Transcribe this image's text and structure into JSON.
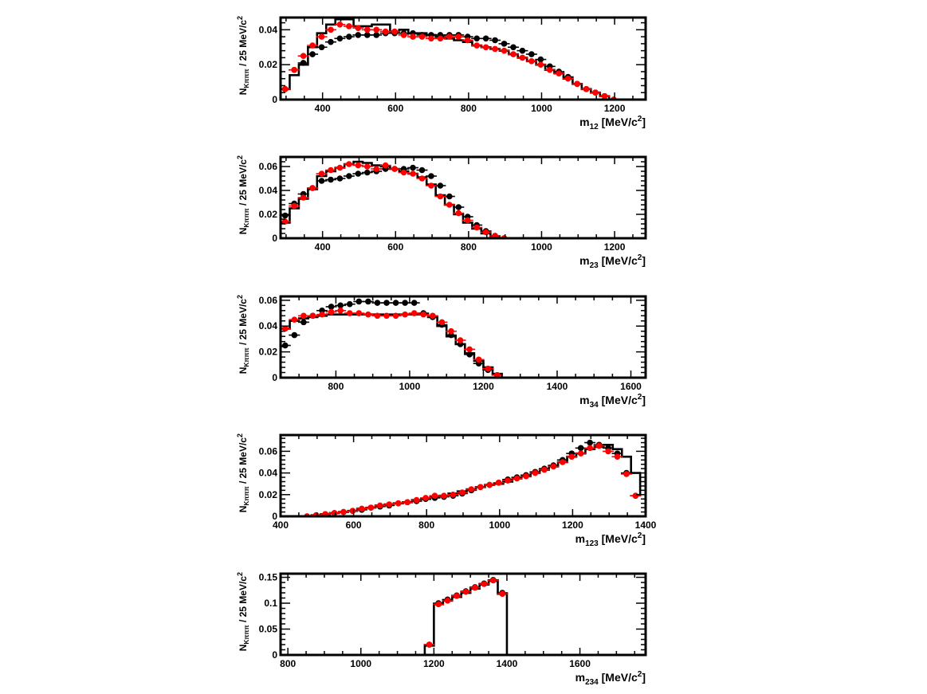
{
  "chart_data": [
    {
      "type": "scatter",
      "xlabel_main": "m",
      "xlabel_sub": "12",
      "xlabel_unit": " [MeV/c",
      "xlabel_sup": "2",
      "xlabel_end": "]",
      "ylabel_n": "N",
      "ylabel_sub": "Kπππ",
      "ylabel_rest": " / 25 MeV/c",
      "ylabel_sup": "2",
      "xlim": [
        285,
        1285
      ],
      "ylim": [
        0,
        0.047
      ],
      "xticks": [
        400,
        600,
        800,
        1000,
        1200
      ],
      "xtick_labels": [
        "400",
        "600",
        "800",
        "1000",
        "1200"
      ],
      "yticks": [
        0,
        0.02,
        0.04
      ],
      "ytick_labels": [
        "0",
        "0.02",
        "0.04"
      ],
      "hist_edges": [
        285,
        310,
        335,
        360,
        385,
        410,
        435,
        460,
        485,
        510,
        535,
        560,
        585,
        610,
        635,
        660,
        685,
        710,
        735,
        760,
        785,
        810,
        835,
        860,
        885,
        910,
        935,
        960,
        985,
        1010,
        1035,
        1060,
        1085,
        1110,
        1135,
        1160,
        1185,
        1210
      ],
      "hist_values": [
        0.006,
        0.014,
        0.02,
        0.03,
        0.038,
        0.043,
        0.046,
        0.046,
        0.042,
        0.042,
        0.043,
        0.043,
        0.039,
        0.04,
        0.038,
        0.038,
        0.037,
        0.036,
        0.035,
        0.034,
        0.033,
        0.031,
        0.03,
        0.029,
        0.028,
        0.026,
        0.024,
        0.022,
        0.02,
        0.017,
        0.015,
        0.012,
        0.009,
        0.006,
        0.004,
        0.002,
        0.0
      ],
      "series": [
        {
          "name": "black",
          "color": "#000000",
          "x": [
            297.5,
            322.5,
            347.5,
            372.5,
            397.5,
            422.5,
            447.5,
            472.5,
            497.5,
            522.5,
            547.5,
            572.5,
            597.5,
            622.5,
            647.5,
            672.5,
            697.5,
            722.5,
            747.5,
            772.5,
            797.5,
            822.5,
            847.5,
            872.5,
            897.5,
            922.5,
            947.5,
            972.5,
            997.5,
            1022.5,
            1047.5,
            1072.5,
            1097.5,
            1122.5,
            1147.5,
            1172.5,
            1197.5
          ],
          "y": [
            0.006,
            0.017,
            0.021,
            0.026,
            0.03,
            0.033,
            0.035,
            0.036,
            0.037,
            0.037,
            0.037,
            0.038,
            0.038,
            0.038,
            0.038,
            0.037,
            0.037,
            0.037,
            0.037,
            0.037,
            0.036,
            0.035,
            0.035,
            0.034,
            0.032,
            0.03,
            0.028,
            0.026,
            0.023,
            0.019,
            0.016,
            0.013,
            0.009,
            0.006,
            0.004,
            0.002,
            0.0
          ]
        },
        {
          "name": "red",
          "color": "#ff0000",
          "x": [
            297.5,
            322.5,
            347.5,
            372.5,
            397.5,
            422.5,
            447.5,
            472.5,
            497.5,
            522.5,
            547.5,
            572.5,
            597.5,
            622.5,
            647.5,
            672.5,
            697.5,
            722.5,
            747.5,
            772.5,
            797.5,
            822.5,
            847.5,
            872.5,
            897.5,
            922.5,
            947.5,
            972.5,
            997.5,
            1022.5,
            1047.5,
            1072.5,
            1097.5,
            1122.5,
            1147.5,
            1172.5,
            1197.5
          ],
          "y": [
            0.006,
            0.017,
            0.025,
            0.031,
            0.036,
            0.04,
            0.043,
            0.042,
            0.041,
            0.04,
            0.04,
            0.039,
            0.039,
            0.037,
            0.036,
            0.036,
            0.035,
            0.035,
            0.036,
            0.036,
            0.034,
            0.031,
            0.03,
            0.029,
            0.028,
            0.026,
            0.024,
            0.022,
            0.02,
            0.017,
            0.015,
            0.012,
            0.009,
            0.006,
            0.004,
            0.002,
            0.0
          ]
        }
      ]
    },
    {
      "type": "scatter",
      "xlabel_main": "m",
      "xlabel_sub": "23",
      "xlabel_unit": " [MeV/c",
      "xlabel_sup": "2",
      "xlabel_end": "]",
      "ylabel_n": "N",
      "ylabel_sub": "Kπππ",
      "ylabel_rest": " / 25 MeV/c",
      "ylabel_sup": "2",
      "xlim": [
        285,
        1285
      ],
      "ylim": [
        0,
        0.068
      ],
      "xticks": [
        400,
        600,
        800,
        1000,
        1200
      ],
      "xtick_labels": [
        "400",
        "600",
        "800",
        "1000",
        "1200"
      ],
      "yticks": [
        0,
        0.02,
        0.04,
        0.06
      ],
      "ytick_labels": [
        "0",
        "0.02",
        "0.04",
        "0.06"
      ],
      "hist_edges": [
        285,
        310,
        335,
        360,
        385,
        410,
        435,
        460,
        485,
        510,
        535,
        560,
        585,
        610,
        635,
        660,
        685,
        710,
        735,
        760,
        785,
        810,
        835,
        860,
        885,
        910
      ],
      "hist_values": [
        0.013,
        0.025,
        0.033,
        0.041,
        0.052,
        0.056,
        0.059,
        0.062,
        0.064,
        0.063,
        0.061,
        0.06,
        0.058,
        0.056,
        0.054,
        0.051,
        0.045,
        0.036,
        0.028,
        0.02,
        0.013,
        0.008,
        0.004,
        0.001,
        0.0
      ],
      "series": [
        {
          "name": "black",
          "color": "#000000",
          "x": [
            297.5,
            322.5,
            347.5,
            372.5,
            397.5,
            422.5,
            447.5,
            472.5,
            497.5,
            522.5,
            547.5,
            572.5,
            597.5,
            622.5,
            647.5,
            672.5,
            697.5,
            722.5,
            747.5,
            772.5,
            797.5,
            822.5,
            847.5,
            872.5,
            897.5
          ],
          "y": [
            0.019,
            0.029,
            0.037,
            0.042,
            0.048,
            0.049,
            0.05,
            0.052,
            0.054,
            0.055,
            0.056,
            0.058,
            0.058,
            0.058,
            0.059,
            0.057,
            0.052,
            0.044,
            0.035,
            0.026,
            0.018,
            0.011,
            0.006,
            0.002,
            0.0
          ]
        },
        {
          "name": "red",
          "color": "#ff0000",
          "x": [
            297.5,
            322.5,
            347.5,
            372.5,
            397.5,
            422.5,
            447.5,
            472.5,
            497.5,
            522.5,
            547.5,
            572.5,
            597.5,
            622.5,
            647.5,
            672.5,
            697.5,
            722.5,
            747.5,
            772.5,
            797.5,
            822.5,
            847.5,
            872.5,
            897.5
          ],
          "y": [
            0.014,
            0.027,
            0.034,
            0.042,
            0.054,
            0.057,
            0.059,
            0.062,
            0.061,
            0.06,
            0.058,
            0.061,
            0.058,
            0.055,
            0.054,
            0.05,
            0.044,
            0.035,
            0.028,
            0.021,
            0.015,
            0.009,
            0.005,
            0.002,
            0.0
          ]
        }
      ]
    },
    {
      "type": "scatter",
      "xlabel_main": "m",
      "xlabel_sub": "34",
      "xlabel_unit": " [MeV/c",
      "xlabel_sup": "2",
      "xlabel_end": "]",
      "ylabel_n": "N",
      "ylabel_sub": "Kπππ",
      "ylabel_rest": " / 25 MeV/c",
      "ylabel_sup": "2",
      "xlim": [
        650,
        1640
      ],
      "ylim": [
        0,
        0.063
      ],
      "xticks": [
        800,
        1000,
        1200,
        1400,
        1600
      ],
      "xtick_labels": [
        "800",
        "1000",
        "1200",
        "1400",
        "1600"
      ],
      "yticks": [
        0,
        0.02,
        0.04,
        0.06
      ],
      "ytick_labels": [
        "0",
        "0.02",
        "0.04",
        "0.06"
      ],
      "hist_edges": [
        650,
        675,
        700,
        725,
        750,
        775,
        800,
        825,
        850,
        875,
        900,
        925,
        950,
        975,
        1000,
        1025,
        1050,
        1075,
        1100,
        1125,
        1150,
        1175,
        1200,
        1225,
        1250
      ],
      "hist_values": [
        0.038,
        0.044,
        0.046,
        0.047,
        0.048,
        0.049,
        0.049,
        0.049,
        0.049,
        0.049,
        0.049,
        0.049,
        0.049,
        0.049,
        0.049,
        0.049,
        0.047,
        0.04,
        0.032,
        0.026,
        0.019,
        0.013,
        0.008,
        0.003
      ],
      "series": [
        {
          "name": "black",
          "color": "#000000",
          "x": [
            662.5,
            687.5,
            712.5,
            737.5,
            762.5,
            787.5,
            812.5,
            837.5,
            862.5,
            887.5,
            912.5,
            937.5,
            962.5,
            987.5,
            1012.5,
            1037.5,
            1062.5,
            1087.5,
            1112.5,
            1137.5,
            1162.5,
            1187.5,
            1212.5,
            1237.5
          ],
          "y": [
            0.025,
            0.033,
            0.043,
            0.048,
            0.052,
            0.055,
            0.056,
            0.057,
            0.059,
            0.059,
            0.058,
            0.058,
            0.058,
            0.058,
            0.058,
            0.05,
            0.047,
            0.041,
            0.033,
            0.026,
            0.018,
            0.011,
            0.006,
            0.002
          ]
        },
        {
          "name": "red",
          "color": "#ff0000",
          "x": [
            662.5,
            687.5,
            712.5,
            737.5,
            762.5,
            787.5,
            812.5,
            837.5,
            862.5,
            887.5,
            912.5,
            937.5,
            962.5,
            987.5,
            1012.5,
            1037.5,
            1062.5,
            1087.5,
            1112.5,
            1137.5,
            1162.5,
            1187.5,
            1212.5,
            1237.5
          ],
          "y": [
            0.038,
            0.045,
            0.048,
            0.048,
            0.049,
            0.051,
            0.052,
            0.05,
            0.05,
            0.049,
            0.048,
            0.048,
            0.048,
            0.049,
            0.05,
            0.049,
            0.048,
            0.043,
            0.036,
            0.029,
            0.022,
            0.014,
            0.007,
            0.002
          ]
        }
      ]
    },
    {
      "type": "scatter",
      "xlabel_main": "m",
      "xlabel_sub": "123",
      "xlabel_unit": " [MeV/c",
      "xlabel_sup": "2",
      "xlabel_end": "]",
      "ylabel_n": "N",
      "ylabel_sub": "Kπππ",
      "ylabel_rest": " / 25 MeV/c",
      "ylabel_sup": "2",
      "xlim": [
        400,
        1400
      ],
      "ylim": [
        0,
        0.075
      ],
      "xticks": [
        400,
        600,
        800,
        1000,
        1200,
        1400
      ],
      "xtick_labels": [
        "400",
        "600",
        "800",
        "1000",
        "1200",
        "1400"
      ],
      "yticks": [
        0,
        0.02,
        0.04,
        0.06
      ],
      "ytick_labels": [
        "0",
        "0.02",
        "0.04",
        "0.06"
      ],
      "hist_edges": [
        460,
        485,
        510,
        535,
        560,
        585,
        610,
        635,
        660,
        685,
        710,
        735,
        760,
        785,
        810,
        835,
        860,
        885,
        910,
        935,
        960,
        985,
        1010,
        1035,
        1060,
        1085,
        1110,
        1135,
        1160,
        1185,
        1210,
        1235,
        1260,
        1285,
        1310,
        1335,
        1360,
        1385
      ],
      "hist_values": [
        0.0,
        0.001,
        0.002,
        0.003,
        0.004,
        0.005,
        0.007,
        0.008,
        0.01,
        0.011,
        0.012,
        0.013,
        0.015,
        0.016,
        0.018,
        0.019,
        0.021,
        0.023,
        0.025,
        0.027,
        0.029,
        0.03,
        0.032,
        0.035,
        0.037,
        0.04,
        0.043,
        0.046,
        0.05,
        0.055,
        0.058,
        0.062,
        0.064,
        0.066,
        0.062,
        0.055,
        0.04,
        0.02
      ],
      "series": [
        {
          "name": "black",
          "color": "#000000",
          "x": [
            472.5,
            497.5,
            522.5,
            547.5,
            572.5,
            597.5,
            622.5,
            647.5,
            672.5,
            697.5,
            722.5,
            747.5,
            772.5,
            797.5,
            822.5,
            847.5,
            872.5,
            897.5,
            922.5,
            947.5,
            972.5,
            997.5,
            1022.5,
            1047.5,
            1072.5,
            1097.5,
            1122.5,
            1147.5,
            1172.5,
            1197.5,
            1222.5,
            1247.5,
            1272.5,
            1297.5,
            1322.5,
            1347.5,
            1372.5
          ],
          "y": [
            0.0,
            0.001,
            0.002,
            0.003,
            0.004,
            0.005,
            0.006,
            0.008,
            0.009,
            0.01,
            0.012,
            0.013,
            0.014,
            0.016,
            0.017,
            0.018,
            0.019,
            0.021,
            0.024,
            0.027,
            0.029,
            0.031,
            0.034,
            0.036,
            0.038,
            0.041,
            0.044,
            0.047,
            0.052,
            0.058,
            0.063,
            0.068,
            0.066,
            0.063,
            0.058,
            0.04,
            0.019
          ]
        },
        {
          "name": "red",
          "color": "#ff0000",
          "x": [
            472.5,
            497.5,
            522.5,
            547.5,
            572.5,
            597.5,
            622.5,
            647.5,
            672.5,
            697.5,
            722.5,
            747.5,
            772.5,
            797.5,
            822.5,
            847.5,
            872.5,
            897.5,
            922.5,
            947.5,
            972.5,
            997.5,
            1022.5,
            1047.5,
            1072.5,
            1097.5,
            1122.5,
            1147.5,
            1172.5,
            1197.5,
            1222.5,
            1247.5,
            1272.5,
            1297.5,
            1322.5,
            1347.5,
            1372.5
          ],
          "y": [
            0.0,
            0.001,
            0.002,
            0.003,
            0.004,
            0.005,
            0.007,
            0.008,
            0.01,
            0.011,
            0.012,
            0.013,
            0.015,
            0.017,
            0.019,
            0.019,
            0.02,
            0.022,
            0.025,
            0.027,
            0.029,
            0.031,
            0.033,
            0.035,
            0.037,
            0.04,
            0.043,
            0.046,
            0.05,
            0.055,
            0.058,
            0.063,
            0.065,
            0.06,
            0.055,
            0.039,
            0.019
          ]
        }
      ]
    },
    {
      "type": "scatter",
      "xlabel_main": "m",
      "xlabel_sub": "234",
      "xlabel_unit": " [MeV/c",
      "xlabel_sup": "2",
      "xlabel_end": "]",
      "ylabel_n": "N",
      "ylabel_sub": "Kπππ",
      "ylabel_rest": " / 25 MeV/c",
      "ylabel_sup": "2",
      "xlim": [
        780,
        1780
      ],
      "ylim": [
        0,
        0.157
      ],
      "xticks": [
        800,
        1000,
        1200,
        1400,
        1600
      ],
      "xtick_labels": [
        "800",
        "1000",
        "1200",
        "1400",
        "1600"
      ],
      "yticks": [
        0,
        0.05,
        0.1,
        0.15
      ],
      "ytick_labels": [
        "0",
        "0.05",
        "0.1",
        "0.15"
      ],
      "hist_edges": [
        1175,
        1200,
        1225,
        1250,
        1275,
        1300,
        1325,
        1350,
        1375,
        1400
      ],
      "hist_values": [
        0.018,
        0.098,
        0.105,
        0.112,
        0.12,
        0.128,
        0.136,
        0.143,
        0.118
      ],
      "series": [
        {
          "name": "black",
          "color": "#000000",
          "x": [
            1187.5,
            1212.5,
            1237.5,
            1262.5,
            1287.5,
            1312.5,
            1337.5,
            1362.5,
            1387.5
          ],
          "y": [
            0.02,
            0.1,
            0.107,
            0.115,
            0.123,
            0.131,
            0.138,
            0.145,
            0.12
          ]
        },
        {
          "name": "red",
          "color": "#ff0000",
          "x": [
            1187.5,
            1212.5,
            1237.5,
            1262.5,
            1287.5,
            1312.5,
            1337.5,
            1362.5,
            1387.5
          ],
          "y": [
            0.02,
            0.098,
            0.105,
            0.114,
            0.122,
            0.13,
            0.137,
            0.144,
            0.118
          ]
        }
      ]
    }
  ]
}
